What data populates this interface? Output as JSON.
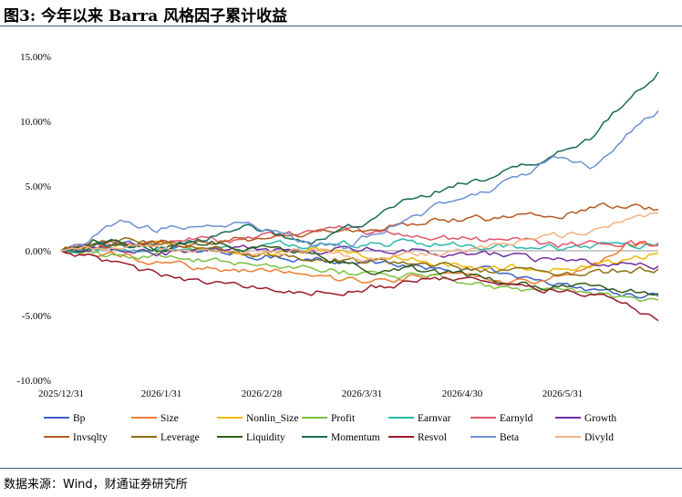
{
  "header": {
    "title": "图3: 今年以来 Barra 风格因子累计收益"
  },
  "footer": {
    "source": "数据来源：Wind，财通证券研究所"
  },
  "chart_data": {
    "type": "line",
    "title": "",
    "xlabel": "",
    "ylabel": "",
    "x_ticks": [
      "2025/12/31",
      "2026/1/31",
      "2026/2/28",
      "2026/3/31",
      "2026/4/30",
      "2026/5/31"
    ],
    "x_tick_index": [
      0,
      22,
      44,
      66,
      88,
      110
    ],
    "y_ticks": [
      "15.00%",
      "10.00%",
      "5.00%",
      "0.00%",
      "-5.00%",
      "-10.00%"
    ],
    "y_tick_values": [
      15,
      10,
      5,
      0,
      -5,
      -10
    ],
    "ylim": [
      -10,
      15
    ],
    "n_points": 132,
    "legend_position": "bottom",
    "series": [
      {
        "name": "Bp",
        "color": "#3b5fc8",
        "values": [
          0,
          0.5,
          0.8,
          0.3,
          0.2,
          0.0,
          -0.3,
          -0.5,
          -0.6,
          -0.8,
          -1.0,
          -1.1,
          -1.3,
          -1.5,
          -1.7,
          -2.1,
          -2.6,
          -3.0,
          -3.3,
          -3.5
        ]
      },
      {
        "name": "Size",
        "color": "#ed7d31",
        "values": [
          0,
          -0.3,
          -0.4,
          -0.8,
          -1.2,
          -1.5,
          -1.4,
          -1.6,
          -1.8,
          -2.2,
          -2.4,
          -2.1,
          -1.8,
          -2.0,
          -2.3,
          -2.5,
          -1.8,
          -1.0,
          0.5,
          0.6
        ]
      },
      {
        "name": "Nonlin_Size",
        "color": "#f2b800",
        "values": [
          0,
          0.3,
          0.2,
          0.6,
          0.4,
          0.3,
          0.0,
          -0.2,
          0.1,
          -0.3,
          -0.4,
          -0.6,
          -0.9,
          -1.2,
          -1.4,
          -1.3,
          -1.5,
          -1.1,
          -0.7,
          -0.2
        ]
      },
      {
        "name": "Profit",
        "color": "#7ac143",
        "values": [
          0,
          -0.2,
          -0.5,
          -0.3,
          -0.6,
          -0.9,
          -1.0,
          -1.2,
          -1.5,
          -1.6,
          -1.8,
          -1.9,
          -2.1,
          -2.4,
          -2.8,
          -3.0,
          -3.2,
          -3.3,
          -3.6,
          -3.8
        ]
      },
      {
        "name": "Earnvar",
        "color": "#2ab8a8",
        "values": [
          0,
          0.1,
          0.2,
          0.0,
          0.1,
          0.3,
          0.2,
          0.4,
          0.5,
          0.6,
          0.5,
          0.7,
          0.6,
          0.5,
          0.4,
          0.3,
          0.2,
          0.3,
          0.4,
          0.5
        ]
      },
      {
        "name": "Earnyld",
        "color": "#e0556b",
        "values": [
          0,
          0.4,
          0.6,
          0.5,
          0.8,
          0.7,
          1.0,
          1.2,
          1.5,
          1.6,
          1.4,
          1.2,
          1.1,
          0.9,
          0.7,
          0.6,
          0.4,
          0.5,
          0.7,
          0.4
        ]
      },
      {
        "name": "Growth",
        "color": "#7030a0",
        "values": [
          0,
          0.2,
          0.1,
          -0.2,
          0.0,
          0.1,
          0.2,
          0.0,
          -0.1,
          0.1,
          0.2,
          0.1,
          -0.1,
          -0.3,
          -0.4,
          -0.6,
          -0.8,
          -1.0,
          -1.1,
          -1.2
        ]
      },
      {
        "name": "Invsqlty",
        "color": "#b35a1f",
        "values": [
          0,
          0.2,
          0.4,
          0.6,
          0.5,
          0.8,
          0.9,
          1.1,
          1.4,
          1.6,
          1.8,
          2.1,
          2.3,
          2.4,
          2.5,
          2.7,
          2.9,
          3.4,
          3.5,
          3.2
        ]
      },
      {
        "name": "Leverage",
        "color": "#8b6e14",
        "values": [
          0,
          0.4,
          0.9,
          0.5,
          0.3,
          0.1,
          -0.1,
          -0.4,
          -0.6,
          -0.7,
          -0.9,
          -1.1,
          -1.2,
          -1.4,
          -1.5,
          -1.7,
          -1.9,
          -1.7,
          -1.5,
          -1.4
        ]
      },
      {
        "name": "Liquidity",
        "color": "#2f5b18",
        "values": [
          0,
          0.8,
          0.5,
          0.2,
          0.4,
          0.6,
          0.3,
          0.0,
          -0.5,
          -1.0,
          -1.6,
          -1.4,
          -1.7,
          -1.9,
          -2.3,
          -2.7,
          -2.8,
          -2.6,
          -3.0,
          -3.3
        ]
      },
      {
        "name": "Momentum",
        "color": "#1a6b5a",
        "values": [
          0,
          0.3,
          0.5,
          0.2,
          0.6,
          1.2,
          2.0,
          1.1,
          0.5,
          1.5,
          2.5,
          3.8,
          4.6,
          5.4,
          6.0,
          6.6,
          7.7,
          8.9,
          11.8,
          13.8
        ]
      },
      {
        "name": "Resvol",
        "color": "#9b1a2c",
        "values": [
          0,
          -0.6,
          -1.2,
          -1.8,
          -2.3,
          -2.6,
          -2.8,
          -3.0,
          -3.1,
          -3.0,
          -2.7,
          -2.4,
          -2.2,
          -2.3,
          -2.5,
          -2.8,
          -3.0,
          -3.3,
          -4.0,
          -5.4
        ]
      },
      {
        "name": "Beta",
        "color": "#6e90d4",
        "values": [
          0,
          1.0,
          2.2,
          1.6,
          2.0,
          1.8,
          2.2,
          1.4,
          0.6,
          0.3,
          1.4,
          2.5,
          3.4,
          4.3,
          5.2,
          6.3,
          7.3,
          6.4,
          9.0,
          10.8
        ]
      },
      {
        "name": "Divyld",
        "color": "#f4b183",
        "values": [
          0,
          0.2,
          0.3,
          0.1,
          0.0,
          -0.2,
          -0.3,
          -0.1,
          0.0,
          -0.4,
          -0.6,
          -0.3,
          -0.1,
          0.2,
          0.5,
          0.8,
          1.2,
          1.8,
          2.4,
          2.9
        ]
      }
    ]
  }
}
